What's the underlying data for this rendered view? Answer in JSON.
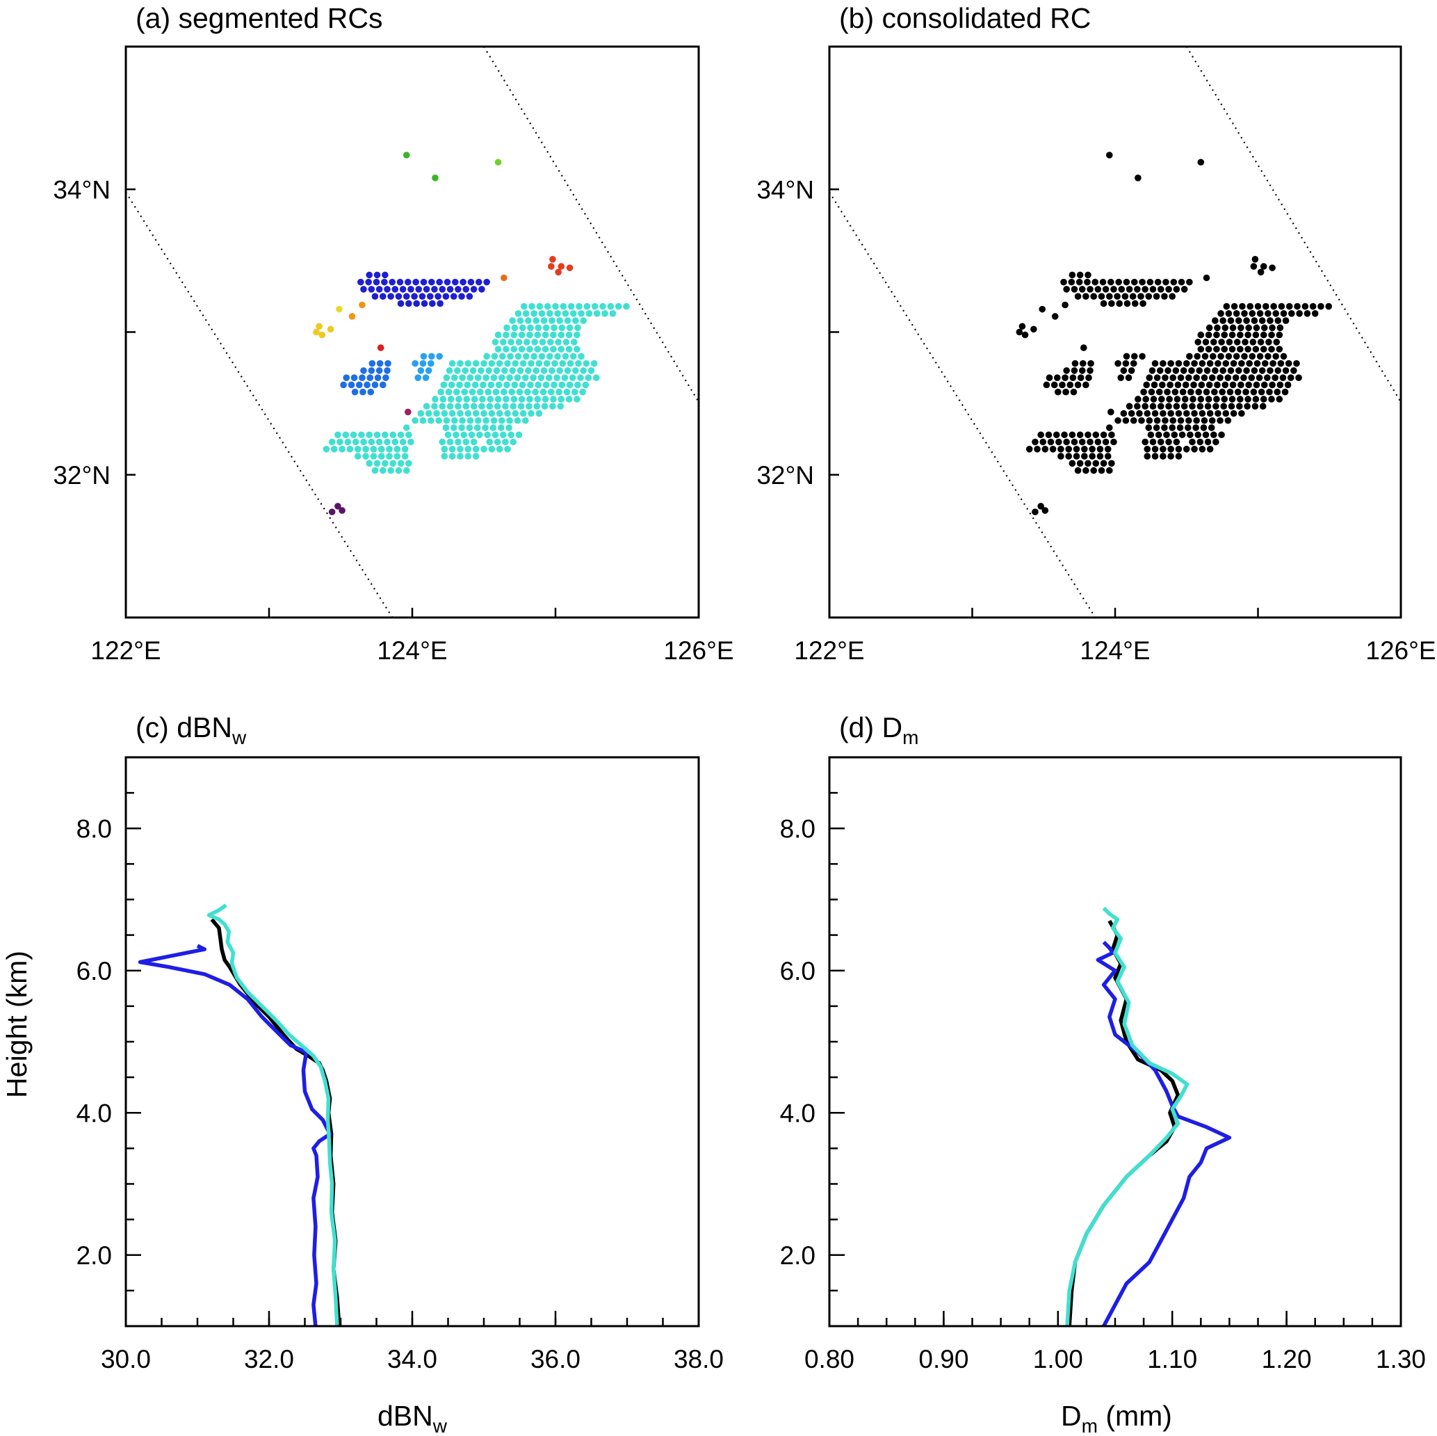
{
  "panels": {
    "a": {
      "title": "(a) segmented RCs"
    },
    "b": {
      "title": "(b) consolidated RC"
    },
    "c": {
      "title_main": "(c) dBN",
      "title_sub": "w"
    },
    "d": {
      "title_main": "(d) D",
      "title_sub": "m"
    }
  },
  "map_axes": {
    "lon_ticks": [
      122,
      123,
      124,
      125,
      126
    ],
    "lon_labels": [
      {
        "value": 122,
        "text": "122°E"
      },
      {
        "value": 124,
        "text": "124°E"
      },
      {
        "value": 126,
        "text": "126°E"
      }
    ],
    "lat_ticks": [
      32,
      33,
      34
    ],
    "lat_labels": [
      {
        "value": 34,
        "text": "34°N"
      },
      {
        "value": 32,
        "text": "32°N"
      }
    ],
    "xlim": [
      122,
      126
    ],
    "ylim": [
      31,
      35
    ],
    "swath_edges": [
      {
        "from": [
          122.0,
          33.98
        ],
        "to": [
          123.88,
          30.97
        ]
      },
      {
        "from": [
          124.5,
          35.0
        ],
        "to": [
          126.0,
          32.51
        ]
      }
    ]
  },
  "chart_data": [
    {
      "type": "scatter",
      "panel": "a",
      "title": "(a) segmented RCs",
      "xlim": [
        122,
        126
      ],
      "ylim": [
        31,
        35
      ],
      "series": [
        {
          "color": "#40e0d0",
          "points": "cluster-main"
        },
        {
          "color": "#1e1ed2",
          "points": "cluster-north-band"
        },
        {
          "color": "#1e6ee6",
          "points": "cluster-west"
        },
        {
          "color": "#28a0f0",
          "points": "cluster-west-small"
        },
        {
          "color": "#f0c81e",
          "points": [
            [
              123.33,
              33.0
            ],
            [
              123.37,
              32.98
            ],
            [
              123.43,
              33.02
            ],
            [
              123.35,
              33.04
            ]
          ]
        },
        {
          "color": "#e6dc28",
          "points": [
            [
              123.49,
              33.16
            ]
          ]
        },
        {
          "color": "#f09614",
          "points": [
            [
              123.58,
              33.11
            ],
            [
              123.65,
              33.19
            ]
          ]
        },
        {
          "color": "#e66e1e",
          "points": [
            [
              124.64,
              33.38
            ]
          ]
        },
        {
          "color": "#e63c1e",
          "points": [
            [
              124.98,
              33.51
            ],
            [
              125.04,
              33.46
            ],
            [
              124.97,
              33.46
            ],
            [
              125.02,
              33.42
            ],
            [
              125.1,
              33.45
            ]
          ]
        },
        {
          "color": "#dc1e1e",
          "points": [
            [
              123.78,
              32.89
            ]
          ]
        },
        {
          "color": "#a01e64",
          "points": [
            [
              123.97,
              32.44
            ]
          ]
        },
        {
          "color": "#3cb428",
          "points": [
            [
              123.96,
              34.24
            ],
            [
              124.16,
              34.08
            ]
          ]
        },
        {
          "color": "#6ed228",
          "points": [
            [
              124.6,
              34.19
            ]
          ]
        },
        {
          "color": "#5a1464",
          "points": [
            [
              123.44,
              31.74
            ],
            [
              123.48,
              31.78
            ],
            [
              123.51,
              31.75
            ]
          ]
        }
      ]
    },
    {
      "type": "scatter",
      "panel": "b",
      "title": "(b) consolidated RC",
      "xlim": [
        122,
        126
      ],
      "ylim": [
        31,
        35
      ],
      "series": [
        {
          "color": "#000000",
          "points": "all-clusters-combined"
        }
      ]
    },
    {
      "type": "line",
      "panel": "c",
      "title": "(c) dBN_w",
      "xlabel": "dBN_w",
      "ylabel": "Height (km)",
      "xlim": [
        30.0,
        38.0
      ],
      "ylim": [
        1.0,
        9.0
      ],
      "xticks": [
        "30.0",
        "32.0",
        "34.0",
        "36.0",
        "38.0"
      ],
      "yticks": [
        "2.0",
        "4.0",
        "6.0",
        "8.0"
      ],
      "series": [
        {
          "color": "#000000",
          "x": [
            32.98,
            32.95,
            32.9,
            32.93,
            32.88,
            32.9,
            32.86,
            32.87,
            32.83,
            32.85,
            32.8,
            32.75,
            32.7,
            32.55,
            32.38,
            32.2,
            32.0,
            31.8,
            31.6,
            31.45,
            31.38,
            31.34,
            31.32,
            31.3,
            31.2
          ],
          "y": [
            1.0,
            1.4,
            1.8,
            2.2,
            2.6,
            3.0,
            3.4,
            3.7,
            4.0,
            4.2,
            4.45,
            4.6,
            4.7,
            4.8,
            4.9,
            5.1,
            5.35,
            5.55,
            5.8,
            6.05,
            6.15,
            6.3,
            6.45,
            6.6,
            6.72
          ]
        },
        {
          "color": "#1e1ee6",
          "x": [
            32.65,
            32.62,
            32.66,
            32.63,
            32.65,
            32.62,
            32.68,
            32.66,
            32.62,
            32.7,
            32.85,
            32.75,
            32.6,
            32.5,
            32.48,
            32.52,
            32.3,
            32.15,
            31.9,
            31.7,
            31.45,
            31.1,
            30.6,
            30.2,
            30.6,
            31.1,
            31.0
          ],
          "y": [
            1.0,
            1.3,
            1.6,
            2.0,
            2.4,
            2.8,
            3.1,
            3.4,
            3.5,
            3.6,
            3.7,
            3.9,
            4.05,
            4.3,
            4.6,
            4.85,
            4.95,
            5.1,
            5.35,
            5.6,
            5.8,
            5.95,
            6.05,
            6.12,
            6.2,
            6.3,
            6.35
          ]
        },
        {
          "color": "#40e0d0",
          "x": [
            32.95,
            32.93,
            32.9,
            32.92,
            32.87,
            32.88,
            32.85,
            32.84,
            32.82,
            32.83,
            32.78,
            32.72,
            32.62,
            32.45,
            32.28,
            32.1,
            31.9,
            31.7,
            31.55,
            31.48,
            31.5,
            31.42,
            31.44,
            31.38,
            31.3,
            31.16,
            31.3,
            31.4
          ],
          "y": [
            1.0,
            1.4,
            1.8,
            2.2,
            2.6,
            3.0,
            3.3,
            3.6,
            3.9,
            4.2,
            4.45,
            4.65,
            4.8,
            4.95,
            5.1,
            5.3,
            5.5,
            5.7,
            5.9,
            6.1,
            6.25,
            6.4,
            6.55,
            6.65,
            6.72,
            6.78,
            6.85,
            6.92
          ]
        }
      ]
    },
    {
      "type": "line",
      "panel": "d",
      "title": "(d) D_m",
      "xlabel": "D_m (mm)",
      "xlim": [
        0.8,
        1.3
      ],
      "ylim": [
        1.0,
        9.0
      ],
      "xticks": [
        "0.80",
        "0.90",
        "1.00",
        "1.10",
        "1.20",
        "1.30"
      ],
      "yticks": [
        "2.0",
        "4.0",
        "6.0",
        "8.0"
      ],
      "series": [
        {
          "color": "#000000",
          "x": [
            1.01,
            1.012,
            1.015,
            1.025,
            1.04,
            1.06,
            1.08,
            1.095,
            1.102,
            1.098,
            1.105,
            1.1,
            1.09,
            1.07,
            1.06,
            1.055,
            1.06,
            1.05,
            1.055,
            1.048,
            1.052,
            1.045
          ],
          "y": [
            1.0,
            1.5,
            1.9,
            2.3,
            2.7,
            3.1,
            3.4,
            3.6,
            3.8,
            4.0,
            4.25,
            4.45,
            4.6,
            4.75,
            5.0,
            5.3,
            5.6,
            5.9,
            6.1,
            6.3,
            6.5,
            6.7
          ]
        },
        {
          "color": "#1e1ee6",
          "x": [
            1.04,
            1.05,
            1.06,
            1.08,
            1.09,
            1.1,
            1.11,
            1.115,
            1.125,
            1.13,
            1.15,
            1.13,
            1.105,
            1.1,
            1.095,
            1.09,
            1.085,
            1.07,
            1.05,
            1.045,
            1.05,
            1.04,
            1.05,
            1.035,
            1.048,
            1.045,
            1.04
          ],
          "y": [
            1.0,
            1.3,
            1.6,
            1.9,
            2.2,
            2.5,
            2.8,
            3.1,
            3.3,
            3.5,
            3.65,
            3.8,
            3.95,
            4.1,
            4.3,
            4.45,
            4.6,
            4.85,
            5.1,
            5.35,
            5.6,
            5.8,
            6.0,
            6.15,
            6.25,
            6.32,
            6.4
          ]
        },
        {
          "color": "#40e0d0",
          "x": [
            1.008,
            1.01,
            1.015,
            1.025,
            1.04,
            1.06,
            1.08,
            1.095,
            1.105,
            1.1,
            1.108,
            1.113,
            1.1,
            1.08,
            1.065,
            1.058,
            1.062,
            1.052,
            1.058,
            1.05,
            1.055,
            1.048,
            1.052,
            1.045,
            1.04
          ],
          "y": [
            1.0,
            1.5,
            1.9,
            2.3,
            2.7,
            3.1,
            3.4,
            3.65,
            3.85,
            4.05,
            4.25,
            4.4,
            4.55,
            4.7,
            4.95,
            5.25,
            5.55,
            5.85,
            6.05,
            6.25,
            6.45,
            6.6,
            6.72,
            6.8,
            6.88
          ]
        }
      ]
    }
  ]
}
